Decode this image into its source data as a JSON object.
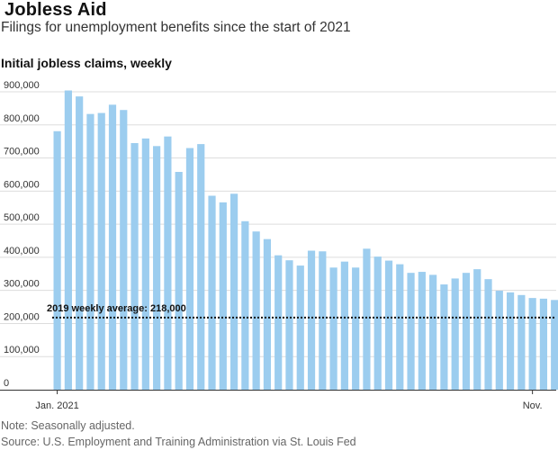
{
  "header": {
    "title": "Jobless Aid",
    "subtitle": "Filings for unemployment benefits since the start of 2021",
    "chart_heading": "Initial jobless claims, weekly"
  },
  "footer": {
    "note": "Note: Seasonally adjusted.",
    "source": "Source: U.S. Employment and Training Administration via St. Louis Fed"
  },
  "colors": {
    "bar": "#9ccdef",
    "grid": "#dddddd",
    "axis": "#333333",
    "reference_line": "#121212"
  },
  "chart_data": {
    "type": "bar",
    "title": "Initial jobless claims, weekly",
    "ylim": [
      0,
      900000
    ],
    "y_ticks": [
      {
        "value": 0,
        "label": "0"
      },
      {
        "value": 100000,
        "label": "100,000"
      },
      {
        "value": 200000,
        "label": "200,000"
      },
      {
        "value": 300000,
        "label": "300,000"
      },
      {
        "value": 400000,
        "label": "400,000"
      },
      {
        "value": 500000,
        "label": "500,000"
      },
      {
        "value": 600000,
        "label": "600,000"
      },
      {
        "value": 700000,
        "label": "700,000"
      },
      {
        "value": 800000,
        "label": "800,000"
      },
      {
        "value": 900000,
        "label": "900,000"
      }
    ],
    "x_ticks": [
      {
        "index": 0,
        "label": "Jan. 2021"
      },
      {
        "index": 43,
        "label": "Nov."
      }
    ],
    "grid": true,
    "values": [
      781000,
      904000,
      886000,
      833000,
      836000,
      861000,
      845000,
      745000,
      759000,
      736000,
      765000,
      658000,
      730000,
      742000,
      586000,
      566000,
      592000,
      509000,
      478000,
      455000,
      406000,
      391000,
      375000,
      420000,
      418000,
      369000,
      387000,
      369000,
      426000,
      402000,
      390000,
      379000,
      353000,
      356000,
      347000,
      318000,
      336000,
      353000,
      364000,
      334000,
      299000,
      294000,
      286000,
      277000,
      275000,
      271000
    ],
    "reference_line": {
      "value": 218000,
      "label": "2019 weekly average: 218,000"
    }
  }
}
